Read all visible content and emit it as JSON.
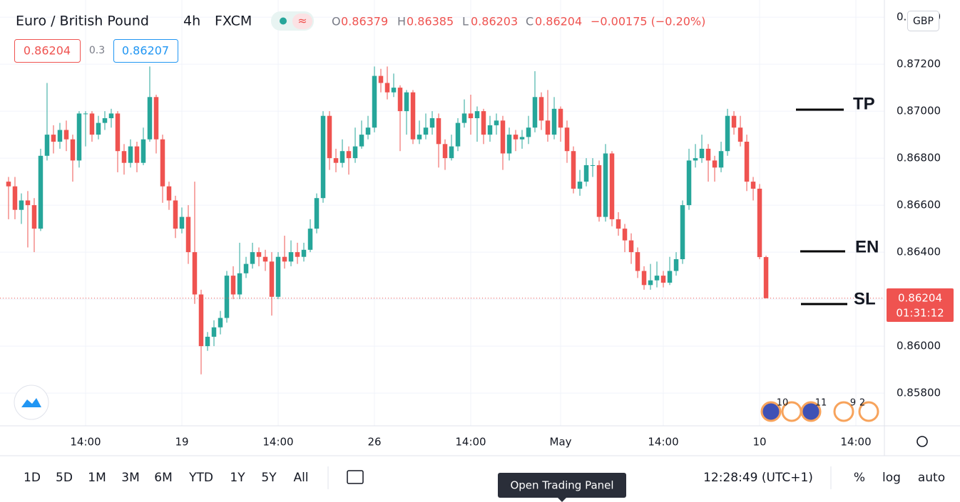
{
  "symbol": "Euro / British Pound",
  "interval": "4h",
  "exchange": "FXCM",
  "ohlc_labels": {
    "open": "O",
    "high": "H",
    "low": "L",
    "close": "C"
  },
  "change": "−0.00175 (−0.20%)",
  "spread": "0.3",
  "ask": "0.86207",
  "currency": "GBP",
  "countdown": "01:31:12",
  "annotations": {
    "tp": "TP",
    "en": "EN",
    "sl": "SL"
  },
  "events": [
    "10",
    "11",
    "9",
    "2"
  ],
  "ranges": [
    "1D",
    "5D",
    "1M",
    "3M",
    "6M",
    "YTD",
    "1Y",
    "5Y",
    "All"
  ],
  "clock": "12:28:49 (UTC+1)",
  "scale_options": [
    "%",
    "log",
    "auto"
  ],
  "tooltip": "Open Trading Panel",
  "chart_data": {
    "type": "candlestick",
    "up_color": "#26a69a",
    "down_color": "#ef5350",
    "grid": true,
    "xlim": [
      -1.33,
      136.44
    ],
    "ylim": [
      0.85661,
      0.87473
    ],
    "xticks": [
      {
        "value": 12,
        "label": "14:00"
      },
      {
        "value": 27,
        "label": "19"
      },
      {
        "value": 42,
        "label": "14:00"
      },
      {
        "value": 57,
        "label": "26"
      },
      {
        "value": 72,
        "label": "14:00"
      },
      {
        "value": 86,
        "label": "May"
      },
      {
        "value": 102,
        "label": "14:00"
      },
      {
        "value": 117,
        "label": "10"
      },
      {
        "value": 132,
        "label": "14:00"
      }
    ],
    "yticks": [
      {
        "value": 0.858,
        "label": "0.85800"
      },
      {
        "value": 0.86,
        "label": "0.86000"
      },
      {
        "value": 0.862,
        "label": "0.86200"
      },
      {
        "value": 0.864,
        "label": "0.86400"
      },
      {
        "value": 0.866,
        "label": "0.86600"
      },
      {
        "value": 0.868,
        "label": "0.86800"
      },
      {
        "value": 0.87,
        "label": "0.87000"
      },
      {
        "value": 0.872,
        "label": "0.87200"
      },
      {
        "value": 0.874,
        "label": "0.87400"
      }
    ],
    "open": [
      0.867,
      0.8668,
      0.8658,
      0.8662,
      0.866,
      0.865,
      0.8681,
      0.869,
      0.8687,
      0.8692,
      0.8688,
      0.8679,
      0.8699,
      0.8699,
      0.869,
      0.8695,
      0.8697,
      0.8699,
      0.8683,
      0.8678,
      0.8685,
      0.8678,
      0.8688,
      0.8706,
      0.8688,
      0.8668,
      0.8662,
      0.865,
      0.8655,
      0.864,
      0.8622,
      0.86,
      0.8604,
      0.8608,
      0.8612,
      0.863,
      0.8622,
      0.8631,
      0.8635,
      0.864,
      0.8638,
      0.8636,
      0.8621,
      0.8638,
      0.8636,
      0.864,
      0.8638,
      0.8641,
      0.865,
      0.8663,
      0.8698,
      0.868,
      0.8678,
      0.8683,
      0.868,
      0.8685,
      0.869,
      0.8693,
      0.8715,
      0.8712,
      0.8708,
      0.871,
      0.87,
      0.8708,
      0.8688,
      0.869,
      0.8693,
      0.8697,
      0.8686,
      0.868,
      0.8685,
      0.8695,
      0.8699,
      0.8697,
      0.87,
      0.869,
      0.8694,
      0.8696,
      0.8682,
      0.869,
      0.8688,
      0.8689,
      0.8693,
      0.8706,
      0.8696,
      0.869,
      0.8701,
      0.8693,
      0.8683,
      0.8667,
      0.867,
      0.8677,
      0.8677,
      0.8655,
      0.8682,
      0.8654,
      0.865,
      0.8645,
      0.864,
      0.8632,
      0.8626,
      0.8628,
      0.863,
      0.8627,
      0.8632,
      0.8637,
      0.866,
      0.8679,
      0.868,
      0.8684,
      0.8679,
      0.8676,
      0.8683,
      0.8698,
      0.8693,
      0.8687,
      0.867,
      0.8667,
      0.86379
    ],
    "high": [
      0.8672,
      0.8672,
      0.8665,
      0.8666,
      0.8663,
      0.8684,
      0.8712,
      0.8694,
      0.8695,
      0.8696,
      0.869,
      0.87,
      0.87,
      0.87,
      0.8698,
      0.87,
      0.8701,
      0.87,
      0.8686,
      0.8688,
      0.8687,
      0.8693,
      0.8719,
      0.8707,
      0.869,
      0.867,
      0.8664,
      0.8659,
      0.866,
      0.867,
      0.8624,
      0.8606,
      0.8611,
      0.8615,
      0.8632,
      0.8634,
      0.8644,
      0.8638,
      0.8644,
      0.8642,
      0.8641,
      0.864,
      0.864,
      0.8647,
      0.8645,
      0.8644,
      0.8644,
      0.8654,
      0.8665,
      0.87,
      0.87,
      0.8684,
      0.8688,
      0.8685,
      0.8693,
      0.8696,
      0.8698,
      0.8719,
      0.8718,
      0.8719,
      0.8716,
      0.8711,
      0.8709,
      0.8709,
      0.8696,
      0.8699,
      0.87,
      0.8699,
      0.8688,
      0.869,
      0.8697,
      0.8705,
      0.8707,
      0.8702,
      0.8701,
      0.8698,
      0.8699,
      0.8698,
      0.8693,
      0.8692,
      0.8692,
      0.8698,
      0.8717,
      0.8708,
      0.8709,
      0.8706,
      0.8702,
      0.8696,
      0.8685,
      0.8675,
      0.868,
      0.868,
      0.8679,
      0.8686,
      0.8683,
      0.8657,
      0.8652,
      0.8648,
      0.8642,
      0.8634,
      0.8635,
      0.8636,
      0.8632,
      0.8638,
      0.864,
      0.8662,
      0.8684,
      0.8686,
      0.869,
      0.8686,
      0.8681,
      0.8687,
      0.8701,
      0.87,
      0.8698,
      0.869,
      0.8672,
      0.8669,
      0.86385
    ],
    "low": [
      0.8654,
      0.8654,
      0.8652,
      0.8642,
      0.864,
      0.8649,
      0.8679,
      0.8682,
      0.8684,
      0.8683,
      0.867,
      0.8676,
      0.8685,
      0.8687,
      0.8688,
      0.8692,
      0.8693,
      0.8674,
      0.8673,
      0.8676,
      0.8674,
      0.8677,
      0.8687,
      0.8682,
      0.8661,
      0.8658,
      0.8646,
      0.8648,
      0.8635,
      0.8618,
      0.8588,
      0.8598,
      0.86,
      0.8605,
      0.861,
      0.862,
      0.862,
      0.8629,
      0.8633,
      0.8634,
      0.8632,
      0.8613,
      0.862,
      0.8633,
      0.8634,
      0.8635,
      0.8636,
      0.864,
      0.8648,
      0.8661,
      0.8675,
      0.8674,
      0.8676,
      0.8673,
      0.8678,
      0.8684,
      0.8688,
      0.8691,
      0.8708,
      0.8705,
      0.8706,
      0.8683,
      0.869,
      0.8686,
      0.8686,
      0.8688,
      0.869,
      0.8676,
      0.8675,
      0.8679,
      0.8683,
      0.8693,
      0.869,
      0.8687,
      0.8686,
      0.8687,
      0.869,
      0.8675,
      0.8679,
      0.8683,
      0.8684,
      0.8686,
      0.8691,
      0.8692,
      0.8687,
      0.8688,
      0.8687,
      0.8678,
      0.8665,
      0.8664,
      0.8668,
      0.8672,
      0.8653,
      0.8653,
      0.8651,
      0.8647,
      0.864,
      0.8635,
      0.8629,
      0.8624,
      0.8624,
      0.8625,
      0.8625,
      0.8626,
      0.863,
      0.8635,
      0.8658,
      0.8676,
      0.8678,
      0.867,
      0.867,
      0.8674,
      0.8681,
      0.869,
      0.8685,
      0.8666,
      0.8662,
      0.8637,
      0.86203
    ],
    "close": [
      0.8668,
      0.8658,
      0.8662,
      0.866,
      0.865,
      0.8681,
      0.869,
      0.8687,
      0.8692,
      0.8688,
      0.8679,
      0.8699,
      0.8699,
      0.869,
      0.8695,
      0.8697,
      0.8699,
      0.8683,
      0.8678,
      0.8685,
      0.8678,
      0.8688,
      0.8706,
      0.8688,
      0.8668,
      0.8662,
      0.865,
      0.8655,
      0.864,
      0.8622,
      0.86,
      0.8604,
      0.8608,
      0.8612,
      0.863,
      0.8622,
      0.8631,
      0.8635,
      0.864,
      0.8638,
      0.8636,
      0.8621,
      0.8638,
      0.8636,
      0.864,
      0.8638,
      0.8641,
      0.865,
      0.8663,
      0.8698,
      0.868,
      0.8678,
      0.8683,
      0.868,
      0.8685,
      0.869,
      0.8693,
      0.8715,
      0.8712,
      0.8708,
      0.871,
      0.87,
      0.8708,
      0.8688,
      0.869,
      0.8693,
      0.8697,
      0.8686,
      0.868,
      0.8685,
      0.8695,
      0.8699,
      0.8697,
      0.87,
      0.869,
      0.8694,
      0.8696,
      0.8682,
      0.869,
      0.8688,
      0.8689,
      0.8693,
      0.8706,
      0.8696,
      0.869,
      0.8701,
      0.8693,
      0.8683,
      0.8667,
      0.867,
      0.8677,
      0.8677,
      0.8655,
      0.8682,
      0.8654,
      0.865,
      0.8645,
      0.864,
      0.8632,
      0.8626,
      0.8628,
      0.863,
      0.8627,
      0.8632,
      0.8637,
      0.866,
      0.8679,
      0.868,
      0.8684,
      0.8679,
      0.8676,
      0.8683,
      0.8698,
      0.8693,
      0.8687,
      0.867,
      0.8667,
      0.86379,
      0.86204
    ]
  }
}
